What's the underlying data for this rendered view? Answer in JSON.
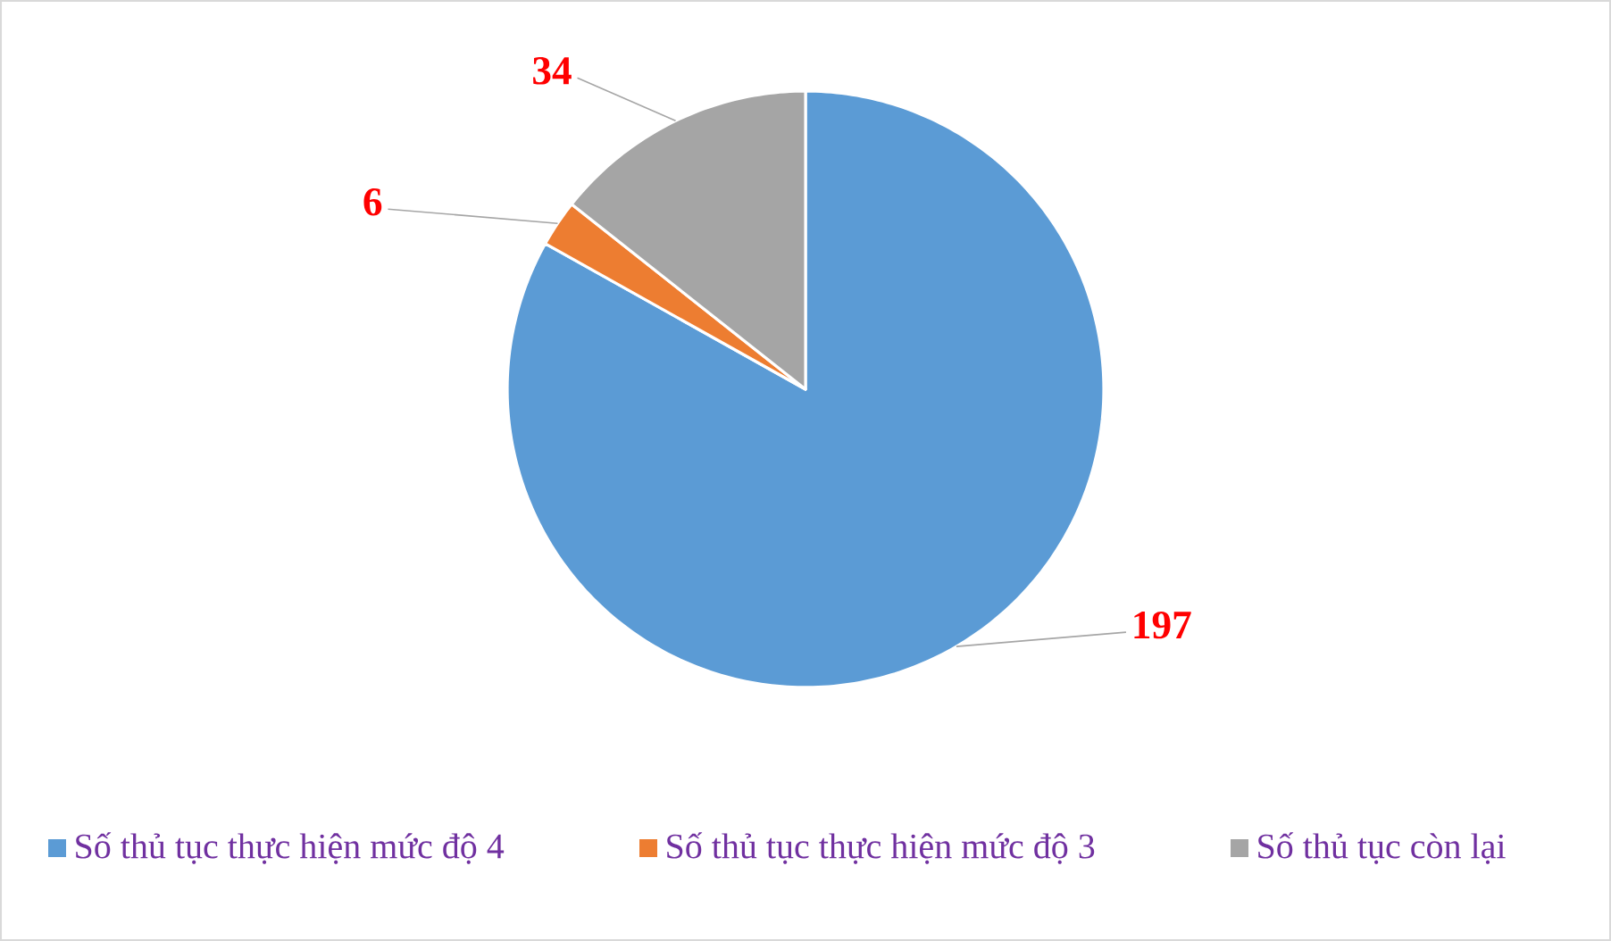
{
  "chart_data": {
    "type": "pie",
    "categories": [
      "Số thủ tục thực hiện mức độ 4",
      "Số thủ tục thực hiện mức độ 3",
      "Số thủ tục còn lại"
    ],
    "values": [
      197,
      6,
      34
    ],
    "colors": [
      "#5b9bd5",
      "#ed7d31",
      "#a5a5a5"
    ],
    "data_labels": true,
    "legend": "bottom"
  }
}
